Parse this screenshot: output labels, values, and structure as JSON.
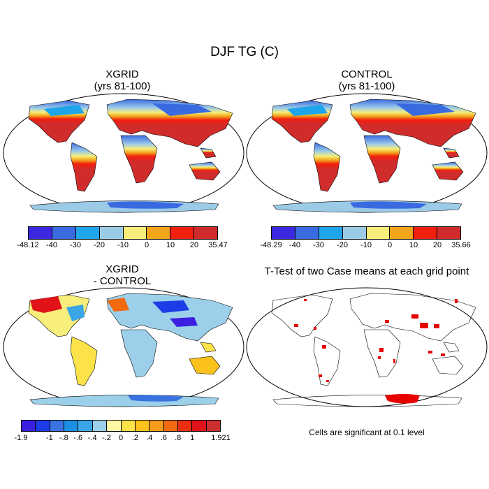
{
  "figure": {
    "title": "DJF TG (C)"
  },
  "panels": [
    {
      "id": "xgrid",
      "title_line1": "XGRID",
      "title_line2": "(yrs 81-100)",
      "colorbar": {
        "colors": [
          "#3b28e0",
          "#3a6ae0",
          "#1ea5ea",
          "#9ccbe8",
          "#f7ee7b",
          "#f3a51c",
          "#f11f0e",
          "#d12c2c"
        ],
        "labels": [
          "-48.12",
          "-40",
          "-30",
          "-20",
          "-10",
          "0",
          "10",
          "20",
          "35.47"
        ]
      }
    },
    {
      "id": "control",
      "title_line1": "CONTROL",
      "title_line2": "(yrs 81-100)",
      "colorbar": {
        "colors": [
          "#3b28e0",
          "#3a6ae0",
          "#1ea5ea",
          "#9ccbe8",
          "#f7ee7b",
          "#f3a51c",
          "#f11f0e",
          "#d12c2c"
        ],
        "labels": [
          "-48.29",
          "-40",
          "-30",
          "-20",
          "-10",
          "0",
          "10",
          "20",
          "35.66"
        ]
      }
    },
    {
      "id": "difference",
      "title_line1": "XGRID",
      "title_line2": "- CONTROL",
      "colorbar": {
        "colors": [
          "#3a1fe0",
          "#1c3ce8",
          "#3a73df",
          "#1d8fe2",
          "#3aa6e5",
          "#9cd0ea",
          "#fff9a6",
          "#fde34a",
          "#fcc21c",
          "#f79b1a",
          "#f26a10",
          "#ea3011",
          "#e0131a",
          "#cc2f2f"
        ],
        "labels": [
          "-1.9",
          "",
          "-1",
          "-.8",
          "-.6",
          "-.4",
          "-.2",
          "0",
          ".2",
          ".4",
          ".6",
          ".8",
          "1",
          "",
          "1.921"
        ]
      }
    },
    {
      "id": "ttest",
      "title_line1": "T-Test of two Case means at each grid point",
      "note": "Cells are significant at 0.1 level"
    }
  ],
  "colors": {
    "significant": "#e60000",
    "coastline": "#000000"
  }
}
